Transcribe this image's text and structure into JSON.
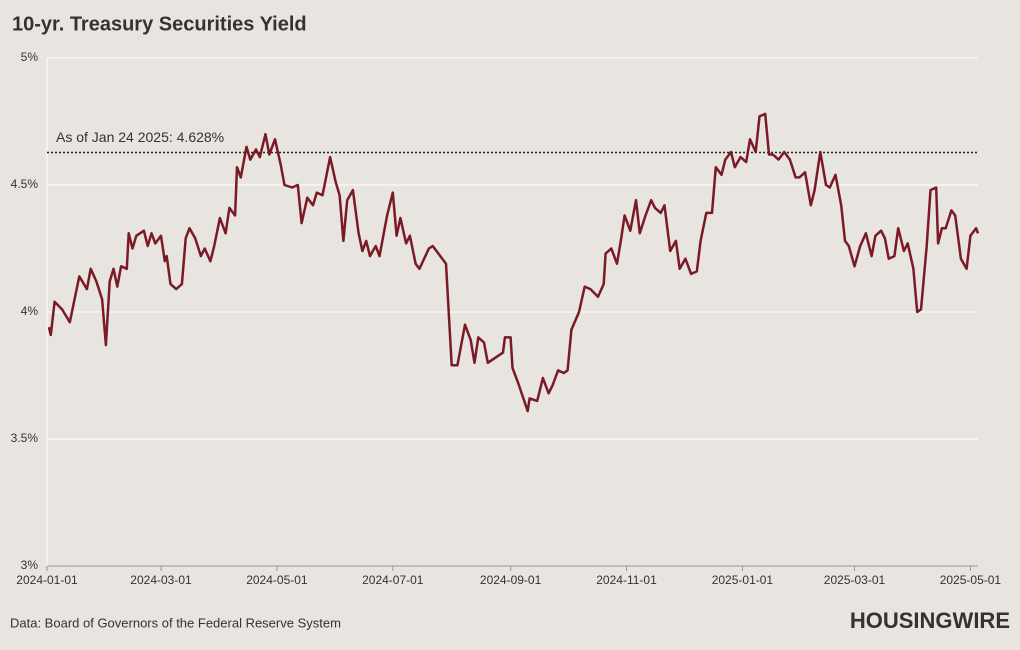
{
  "chart_data": {
    "type": "line",
    "title": "10-yr. Treasury Securities Yield",
    "source": "Data: Board of Governors of the Federal Reserve System",
    "logo": "HOUSINGWIRE",
    "annotation": {
      "text": "As of Jan 24 2025: 4.628%",
      "value": 4.628
    },
    "grid": true,
    "xlim": [
      "2024-01-01",
      "2025-05-05"
    ],
    "xticks": [
      "2024-01-01",
      "2024-03-01",
      "2024-05-01",
      "2024-07-01",
      "2024-09-01",
      "2024-11-01",
      "2025-01-01",
      "2025-03-01",
      "2025-05-01"
    ],
    "ylim": [
      3,
      5
    ],
    "yticks": [
      {
        "value": 3,
        "label": "3%"
      },
      {
        "value": 3.5,
        "label": "3.5%"
      },
      {
        "value": 4,
        "label": "4%"
      },
      {
        "value": 4.5,
        "label": "4.5%"
      },
      {
        "value": 5,
        "label": "5%"
      }
    ],
    "x": [
      "2024-01-02",
      "2024-01-03",
      "2024-01-05",
      "2024-01-09",
      "2024-01-13",
      "2024-01-18",
      "2024-01-22",
      "2024-01-24",
      "2024-01-27",
      "2024-01-30",
      "2024-02-01",
      "2024-02-03",
      "2024-02-05",
      "2024-02-07",
      "2024-02-09",
      "2024-02-12",
      "2024-02-13",
      "2024-02-15",
      "2024-02-17",
      "2024-02-21",
      "2024-02-23",
      "2024-02-25",
      "2024-02-27",
      "2024-03-01",
      "2024-03-03",
      "2024-03-04",
      "2024-03-06",
      "2024-03-09",
      "2024-03-12",
      "2024-03-14",
      "2024-03-16",
      "2024-03-19",
      "2024-03-22",
      "2024-03-24",
      "2024-03-27",
      "2024-03-29",
      "2024-04-01",
      "2024-04-04",
      "2024-04-06",
      "2024-04-09",
      "2024-04-10",
      "2024-04-12",
      "2024-04-15",
      "2024-04-17",
      "2024-04-20",
      "2024-04-22",
      "2024-04-25",
      "2024-04-27",
      "2024-04-30",
      "2024-05-03",
      "2024-05-05",
      "2024-05-09",
      "2024-05-12",
      "2024-05-14",
      "2024-05-17",
      "2024-05-20",
      "2024-05-22",
      "2024-05-25",
      "2024-05-29",
      "2024-06-01",
      "2024-06-03",
      "2024-06-05",
      "2024-06-07",
      "2024-06-10",
      "2024-06-13",
      "2024-06-15",
      "2024-06-17",
      "2024-06-19",
      "2024-06-22",
      "2024-06-24",
      "2024-06-28",
      "2024-07-01",
      "2024-07-03",
      "2024-07-05",
      "2024-07-08",
      "2024-07-10",
      "2024-07-13",
      "2024-07-15",
      "2024-07-20",
      "2024-07-22",
      "2024-07-26",
      "2024-07-29",
      "2024-08-01",
      "2024-08-04",
      "2024-08-08",
      "2024-08-11",
      "2024-08-13",
      "2024-08-15",
      "2024-08-18",
      "2024-08-20",
      "2024-08-24",
      "2024-08-28",
      "2024-08-29",
      "2024-09-01",
      "2024-09-02",
      "2024-09-05",
      "2024-09-10",
      "2024-09-11",
      "2024-09-15",
      "2024-09-18",
      "2024-09-21",
      "2024-09-23",
      "2024-09-26",
      "2024-09-29",
      "2024-10-01",
      "2024-10-03",
      "2024-10-07",
      "2024-10-10",
      "2024-10-13",
      "2024-10-17",
      "2024-10-20",
      "2024-10-21",
      "2024-10-24",
      "2024-10-27",
      "2024-10-29",
      "2024-10-31",
      "2024-11-03",
      "2024-11-06",
      "2024-11-08",
      "2024-11-11",
      "2024-11-14",
      "2024-11-16",
      "2024-11-19",
      "2024-11-21",
      "2024-11-24",
      "2024-11-27",
      "2024-11-29",
      "2024-12-02",
      "2024-12-05",
      "2024-12-08",
      "2024-12-10",
      "2024-12-13",
      "2024-12-16",
      "2024-12-18",
      "2024-12-21",
      "2024-12-23",
      "2024-12-26",
      "2024-12-28",
      "2024-12-31",
      "2025-01-03",
      "2025-01-05",
      "2025-01-08",
      "2025-01-10",
      "2025-01-13",
      "2025-01-15",
      "2025-01-17",
      "2025-01-20",
      "2025-01-23",
      "2025-01-26",
      "2025-01-29",
      "2025-01-31",
      "2025-02-03",
      "2025-02-06",
      "2025-02-08",
      "2025-02-11",
      "2025-02-14",
      "2025-02-16",
      "2025-02-19",
      "2025-02-22",
      "2025-02-24",
      "2025-02-26",
      "2025-03-01",
      "2025-03-04",
      "2025-03-07",
      "2025-03-10",
      "2025-03-12",
      "2025-03-15",
      "2025-03-17",
      "2025-03-19",
      "2025-03-22",
      "2025-03-24",
      "2025-03-27",
      "2025-03-29",
      "2025-04-01",
      "2025-04-03",
      "2025-04-05",
      "2025-04-08",
      "2025-04-10",
      "2025-04-13",
      "2025-04-14",
      "2025-04-16",
      "2025-04-18",
      "2025-04-21",
      "2025-04-23",
      "2025-04-26",
      "2025-04-29",
      "2025-05-01",
      "2025-05-04",
      "2025-05-05"
    ],
    "series": [
      {
        "name": "10-yr. Treasury Securities Yield",
        "color": "#7b1a25",
        "values": [
          3.94,
          3.91,
          4.04,
          4.01,
          3.96,
          4.14,
          4.09,
          4.17,
          4.12,
          4.05,
          3.87,
          4.12,
          4.17,
          4.1,
          4.18,
          4.17,
          4.31,
          4.25,
          4.3,
          4.32,
          4.26,
          4.31,
          4.27,
          4.3,
          4.2,
          4.22,
          4.11,
          4.09,
          4.11,
          4.29,
          4.33,
          4.29,
          4.22,
          4.25,
          4.2,
          4.26,
          4.37,
          4.31,
          4.41,
          4.38,
          4.57,
          4.53,
          4.65,
          4.6,
          4.64,
          4.61,
          4.7,
          4.62,
          4.68,
          4.58,
          4.5,
          4.49,
          4.5,
          4.35,
          4.45,
          4.42,
          4.47,
          4.46,
          4.61,
          4.51,
          4.46,
          4.28,
          4.44,
          4.48,
          4.31,
          4.24,
          4.28,
          4.22,
          4.26,
          4.22,
          4.38,
          4.47,
          4.3,
          4.37,
          4.27,
          4.3,
          4.19,
          4.17,
          4.25,
          4.26,
          4.22,
          4.19,
          3.79,
          3.79,
          3.95,
          3.89,
          3.8,
          3.9,
          3.88,
          3.8,
          3.82,
          3.84,
          3.9,
          3.9,
          3.78,
          3.72,
          3.61,
          3.66,
          3.65,
          3.74,
          3.68,
          3.71,
          3.77,
          3.76,
          3.77,
          3.93,
          4.0,
          4.1,
          4.09,
          4.06,
          4.11,
          4.23,
          4.25,
          4.19,
          4.28,
          4.38,
          4.32,
          4.44,
          4.31,
          4.38,
          4.44,
          4.41,
          4.39,
          4.42,
          4.24,
          4.28,
          4.17,
          4.21,
          4.15,
          4.16,
          4.28,
          4.39,
          4.39,
          4.57,
          4.54,
          4.6,
          4.63,
          4.57,
          4.61,
          4.59,
          4.68,
          4.63,
          4.77,
          4.78,
          4.62,
          4.62,
          4.6,
          4.63,
          4.6,
          4.53,
          4.53,
          4.55,
          4.42,
          4.48,
          4.63,
          4.5,
          4.49,
          4.54,
          4.42,
          4.28,
          4.26,
          4.18,
          4.26,
          4.31,
          4.22,
          4.3,
          4.32,
          4.29,
          4.21,
          4.22,
          4.33,
          4.24,
          4.27,
          4.17,
          4.0,
          4.01,
          4.26,
          4.48,
          4.49,
          4.27,
          4.33,
          4.33,
          4.4,
          4.38,
          4.21,
          4.17,
          4.3,
          4.33,
          4.31
        ]
      }
    ]
  }
}
